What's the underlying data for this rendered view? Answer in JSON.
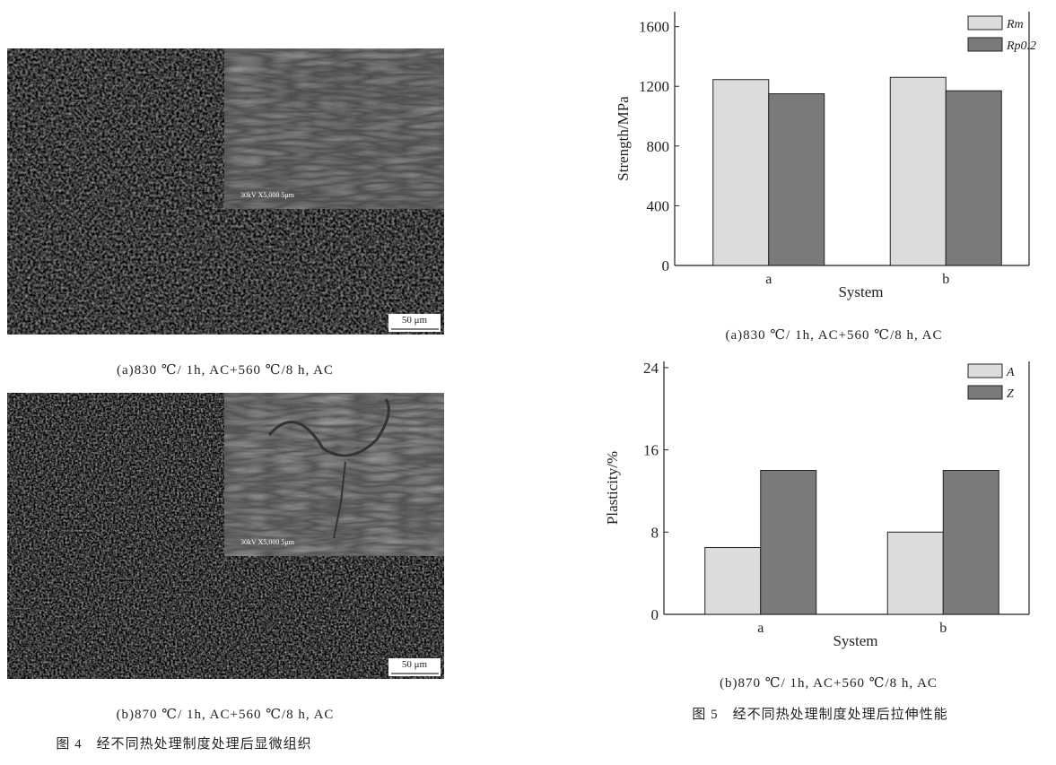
{
  "figure4": {
    "panels": [
      {
        "scale_bar": "50 μm",
        "inset_label": "30kV X5,000 5μm",
        "caption": "(a)830 ℃/ 1h, AC+560 ℃/8 h, AC"
      },
      {
        "scale_bar": "50 μm",
        "inset_label": "30kV X5,000 5μm",
        "caption": "(b)870 ℃/ 1h, AC+560 ℃/8 h, AC"
      }
    ],
    "caption": "图 4　经不同热处理制度处理后显微组织"
  },
  "figure5": {
    "caption": "图 5　经不同热处理制度处理后拉伸性能"
  },
  "chart_data": [
    {
      "type": "bar",
      "caption": "(a)830 ℃/ 1h, AC+560 ℃/8 h, AC",
      "x_label": "System",
      "y_label": "Strength/MPa",
      "categories": [
        "a",
        "b"
      ],
      "series": [
        {
          "name": "Rm",
          "color": "#dcdcdc",
          "values": [
            1245,
            1260
          ]
        },
        {
          "name": "Rp0.2",
          "color": "#7a7a7a",
          "values": [
            1150,
            1170
          ]
        }
      ],
      "ylim": [
        0,
        1700
      ],
      "yticks": [
        0,
        400,
        800,
        1200,
        1600
      ],
      "legend": "top-right",
      "grid": false
    },
    {
      "type": "bar",
      "caption": "(b)870 ℃/ 1h, AC+560 ℃/8 h, AC",
      "x_label": "System",
      "y_label": "Plasticity/%",
      "categories": [
        "a",
        "b"
      ],
      "series": [
        {
          "name": "A",
          "color": "#dcdcdc",
          "values": [
            6.5,
            8
          ]
        },
        {
          "name": "Z",
          "color": "#7a7a7a",
          "values": [
            14,
            14
          ]
        }
      ],
      "ylim": [
        0,
        24.6
      ],
      "yticks": [
        0,
        8,
        16,
        24
      ],
      "legend": "top-right",
      "grid": false
    }
  ]
}
